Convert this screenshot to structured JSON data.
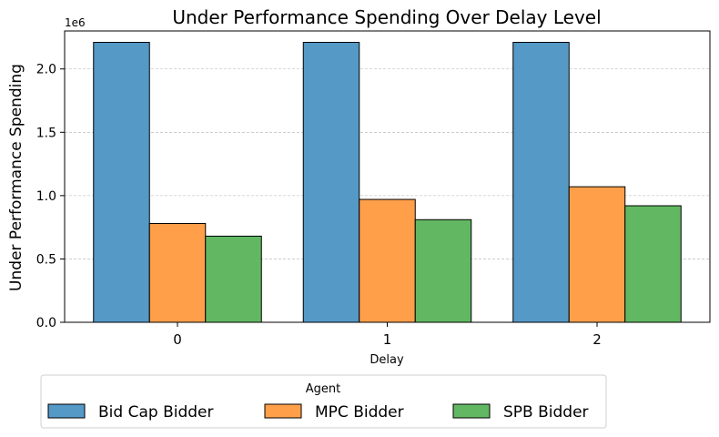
{
  "chart_data": {
    "type": "bar",
    "title": "Under Performance Spending Over Delay Level",
    "xlabel": "Delay",
    "ylabel": "Under Performance Spending",
    "y_offset_label": "1e6",
    "categories": [
      "0",
      "1",
      "2"
    ],
    "ylim": [
      0,
      2300000
    ],
    "yticks": [
      0,
      500000,
      1000000,
      1500000,
      2000000
    ],
    "ytick_labels": [
      "0.0",
      "0.5",
      "1.0",
      "1.5",
      "2.0"
    ],
    "grid": "horizontal dashed",
    "legend": {
      "title": "Agent",
      "placement": "bottom-center"
    },
    "series": [
      {
        "name": "Bid Cap Bidder",
        "color": "#5599c7",
        "values": [
          2210000,
          2210000,
          2210000
        ]
      },
      {
        "name": "MPC Bidder",
        "color": "#ff9f4a",
        "values": [
          780000,
          970000,
          1070000
        ]
      },
      {
        "name": "SPB Bidder",
        "color": "#62b862",
        "values": [
          680000,
          810000,
          920000
        ]
      }
    ]
  }
}
